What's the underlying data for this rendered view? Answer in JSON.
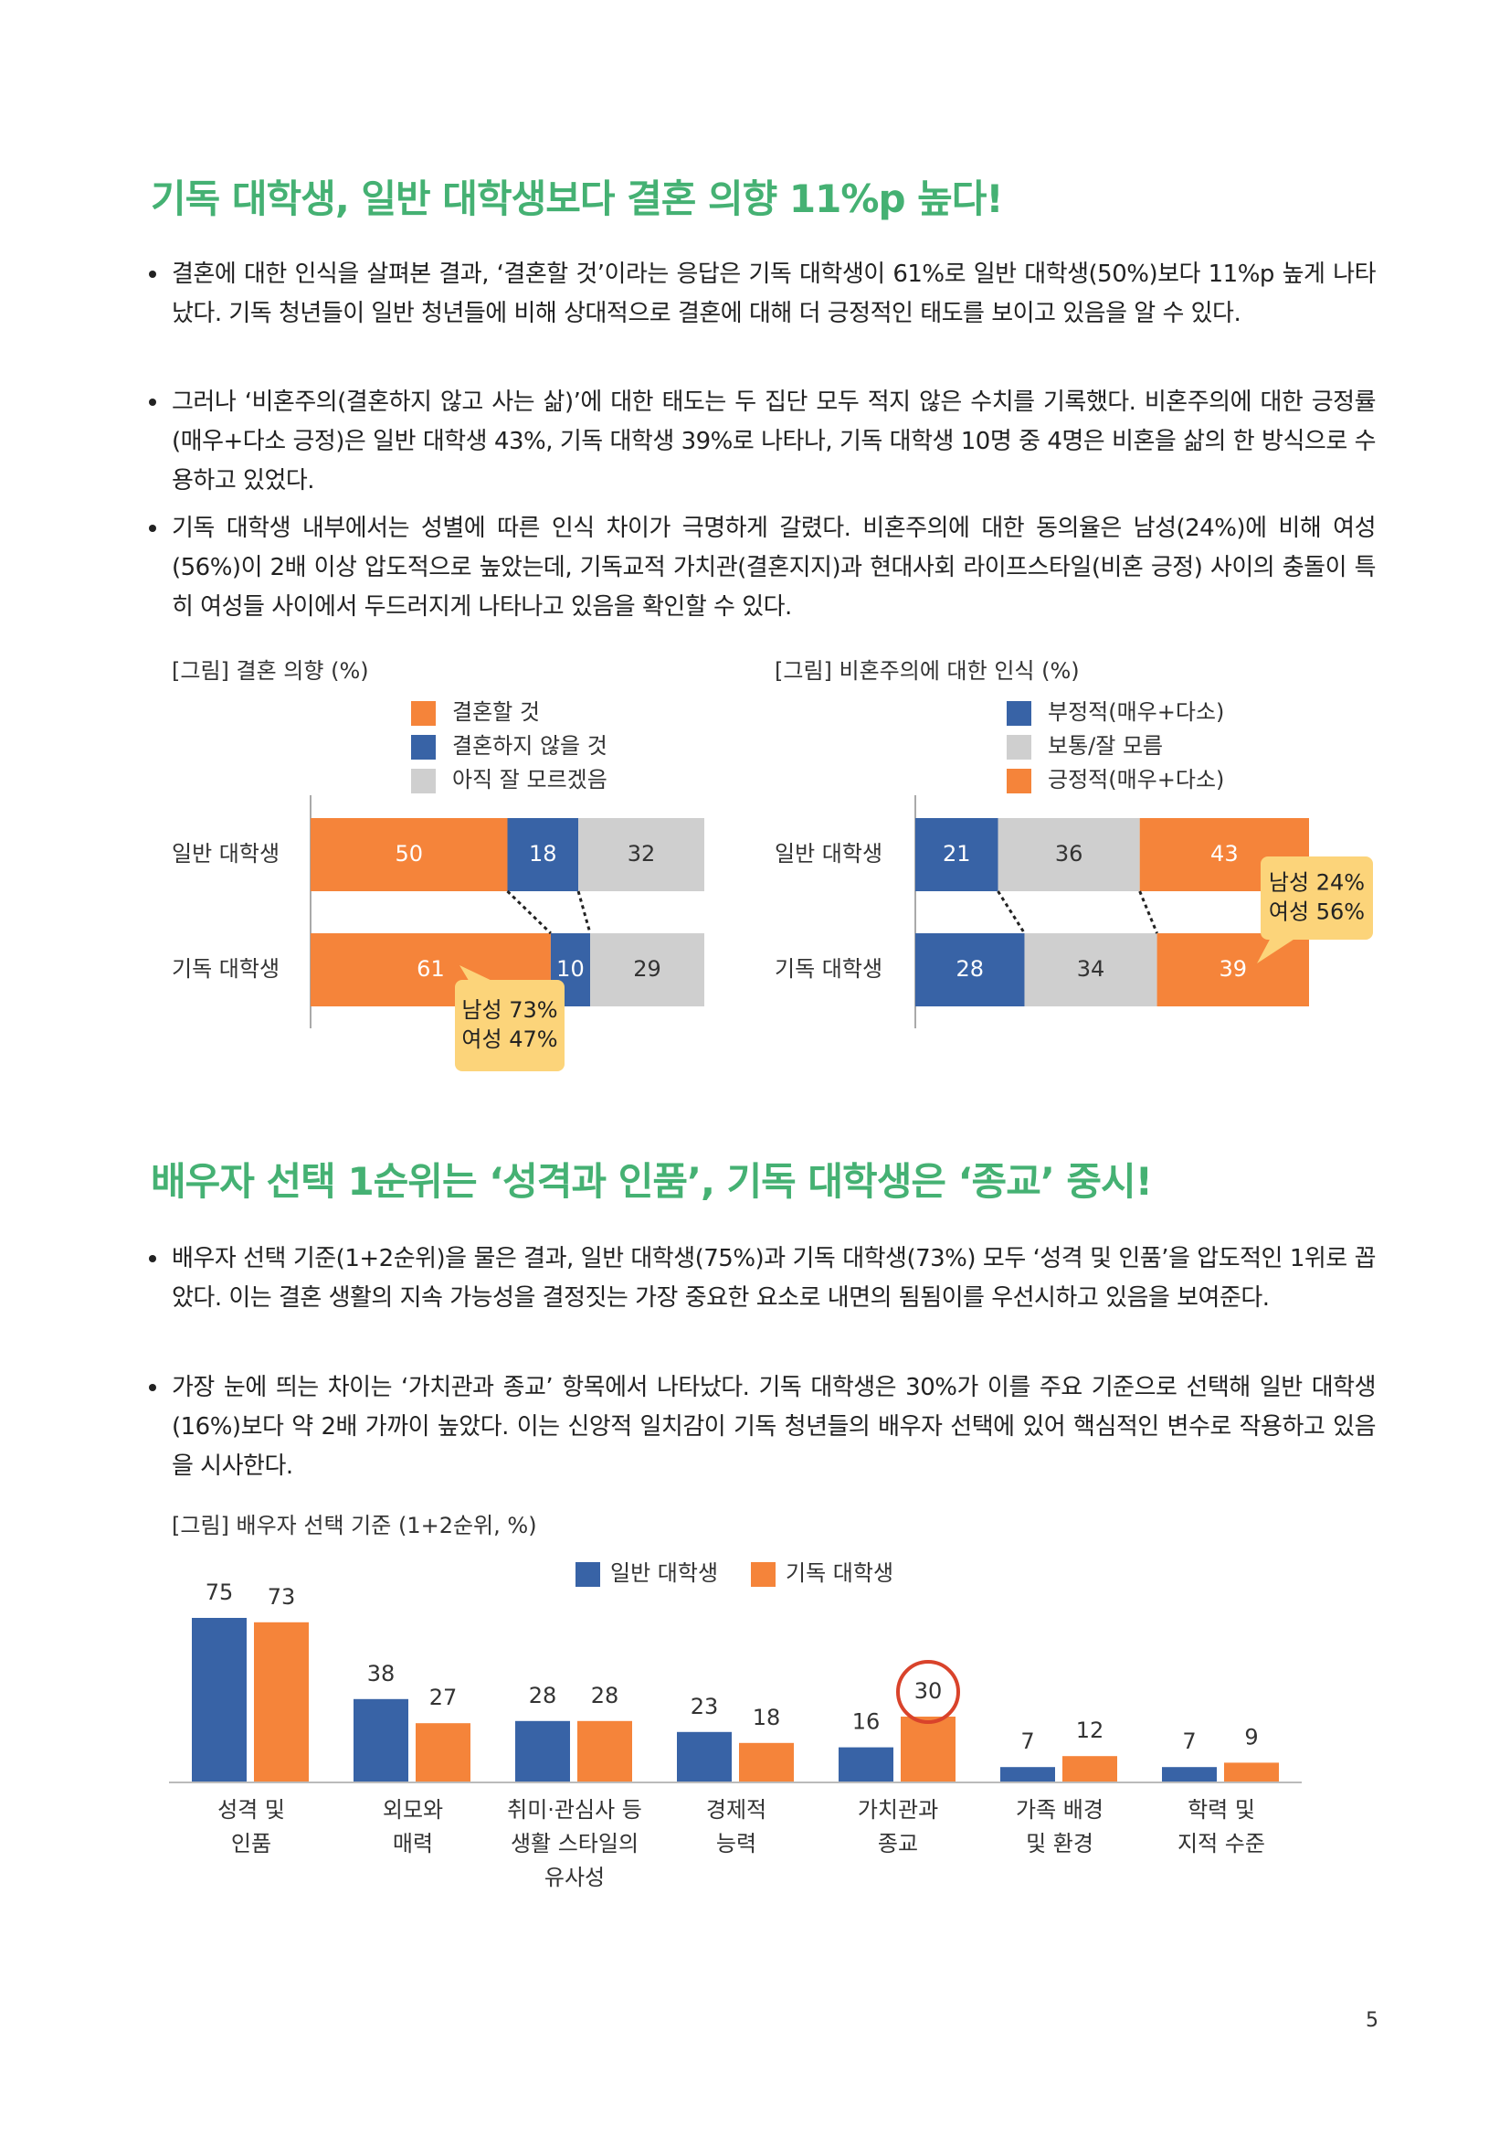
{
  "sections": [
    {
      "title": "기독 대학생, 일반 대학생보다 결혼 의향 11%p 높다!",
      "bullets": [
        "결혼에 대한 인식을 살펴본 결과, ‘결혼할 것’이라는 응답은 기독 대학생이 61%로 일반 대학생(50%)보다 11%p 높게 나타났다. 기독 청년들이 일반 청년들에 비해 상대적으로 결혼에 대해 더 긍정적인 태도를 보이고 있음을 알 수 있다.",
        "그러나 ‘비혼주의(결혼하지 않고 사는 삶)’에 대한 태도는 두 집단 모두 적지 않은 수치를 기록했다. 비혼주의에 대한 긍정률(매우+다소 긍정)은 일반 대학생 43%, 기독 대학생 39%로 나타나, 기독 대학생 10명 중 4명은 비혼을 삶의 한 방식으로 수용하고 있었다.",
        "기독 대학생 내부에서는 성별에 따른 인식 차이가 극명하게 갈렸다. 비혼주의에 대한 동의율은 남성(24%)에 비해 여성(56%)이 2배 이상 압도적으로 높았는데, 기독교적 가치관(결혼지지)과 현대사회 라이프스타일(비혼 긍정) 사이의 충돌이 특히 여성들 사이에서 두드러지게 나타나고 있음을 확인할 수 있다."
      ]
    },
    {
      "title": "배우자 선택 1순위는 ‘성격과 인품’, 기독 대학생은 ‘종교’ 중시!",
      "bullets": [
        "배우자 선택 기준(1+2순위)을 물은 결과, 일반 대학생(75%)과 기독 대학생(73%) 모두 ‘성격 및 인품’을 압도적인 1위로 꼽았다. 이는 결혼 생활의 지속 가능성을 결정짓는 가장 중요한 요소로 내면의 됨됨이를 우선시하고 있음을 보여준다.",
        "가장 눈에 띄는 차이는 ‘가치관과 종교’ 항목에서 나타났다. 기독 대학생은 30%가 이를 주요 기준으로 선택해 일반 대학생(16%)보다 약 2배 가까이 높았다. 이는 신앙적 일치감이 기독 청년들의 배우자 선택에 있어 핵심적인 변수로 작용하고 있음을 시사한다."
      ]
    }
  ],
  "chart_data": [
    {
      "type": "bar",
      "stacked": true,
      "orientation": "horizontal",
      "caption": "[그림] 결혼 의향 (%)",
      "categories": [
        "일반 대학생",
        "기독 대학생"
      ],
      "series": [
        {
          "name": "결혼할 것",
          "color": "#f5843a",
          "values": [
            50,
            61
          ]
        },
        {
          "name": "결혼하지 않을 것",
          "color": "#3863a6",
          "values": [
            18,
            10
          ]
        },
        {
          "name": "아직 잘 모르겠음",
          "color": "#cfcfcf",
          "values": [
            32,
            29
          ]
        }
      ],
      "annotation": [
        "남성 73%",
        "여성 47%"
      ]
    },
    {
      "type": "bar",
      "stacked": true,
      "orientation": "horizontal",
      "caption": "[그림] 비혼주의에 대한 인식 (%)",
      "categories": [
        "일반 대학생",
        "기독 대학생"
      ],
      "series": [
        {
          "name": "부정적(매우+다소)",
          "color": "#3863a6",
          "values": [
            21,
            28
          ]
        },
        {
          "name": "보통/잘 모름",
          "color": "#cfcfcf",
          "values": [
            36,
            34
          ]
        },
        {
          "name": "긍정적(매우+다소)",
          "color": "#f5843a",
          "values": [
            43,
            39
          ]
        }
      ],
      "annotation": [
        "남성 24%",
        "여성 56%"
      ]
    },
    {
      "type": "bar",
      "stacked": false,
      "orientation": "vertical",
      "caption": "[그림] 배우자 선택 기준 (1+2순위, %)",
      "categories": [
        "성격 및\n인품",
        "외모와\n매력",
        "취미·관심사 등\n생활 스타일의\n유사성",
        "경제적\n능력",
        "가치관과\n종교",
        "가족 배경\n및 환경",
        "학력 및\n지적 수준"
      ],
      "series": [
        {
          "name": "일반 대학생",
          "color": "#3863a6",
          "values": [
            75,
            38,
            28,
            23,
            16,
            7,
            7
          ]
        },
        {
          "name": "기독 대학생",
          "color": "#f5843a",
          "values": [
            73,
            27,
            28,
            18,
            30,
            12,
            9
          ]
        }
      ]
    }
  ],
  "page_number": "5"
}
